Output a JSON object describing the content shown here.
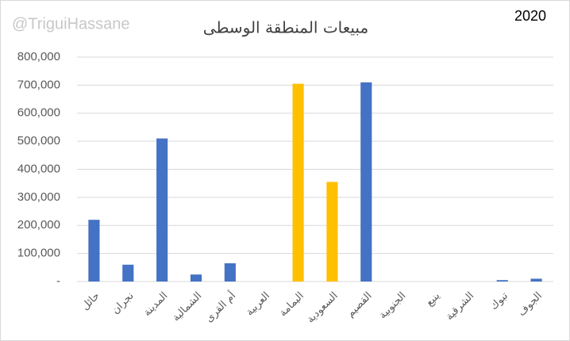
{
  "chart_data": {
    "type": "bar",
    "title": "مبيعات المنطقة الوسطى",
    "watermark": "@TriguiHassane",
    "year_label": "2020",
    "categories": [
      "حائل",
      "نجران",
      "المدينة",
      "الشمالية",
      "أم القرى",
      "العربية",
      "اليمامة",
      "السعودية",
      "القصيم",
      "الجنوبية",
      "ينبع",
      "الشرقية",
      "تبوك",
      "الجوف"
    ],
    "values": [
      220000,
      60000,
      510000,
      25000,
      65000,
      0,
      705000,
      355000,
      710000,
      0,
      0,
      0,
      5000,
      10000
    ],
    "colors": [
      "#4472c4",
      "#4472c4",
      "#4472c4",
      "#4472c4",
      "#4472c4",
      "#4472c4",
      "#ffc000",
      "#ffc000",
      "#4472c4",
      "#4472c4",
      "#4472c4",
      "#4472c4",
      "#4472c4",
      "#4472c4"
    ],
    "ylim": [
      0,
      800000
    ],
    "yticks": [
      {
        "value": 0,
        "label": "-"
      },
      {
        "value": 100000,
        "label": "100,000"
      },
      {
        "value": 200000,
        "label": "200,000"
      },
      {
        "value": 300000,
        "label": "300,000"
      },
      {
        "value": 400000,
        "label": "400,000"
      },
      {
        "value": 500000,
        "label": "500,000"
      },
      {
        "value": 600000,
        "label": "600,000"
      },
      {
        "value": 700000,
        "label": "700,000"
      },
      {
        "value": 800000,
        "label": "800,000"
      }
    ],
    "grid": true
  }
}
